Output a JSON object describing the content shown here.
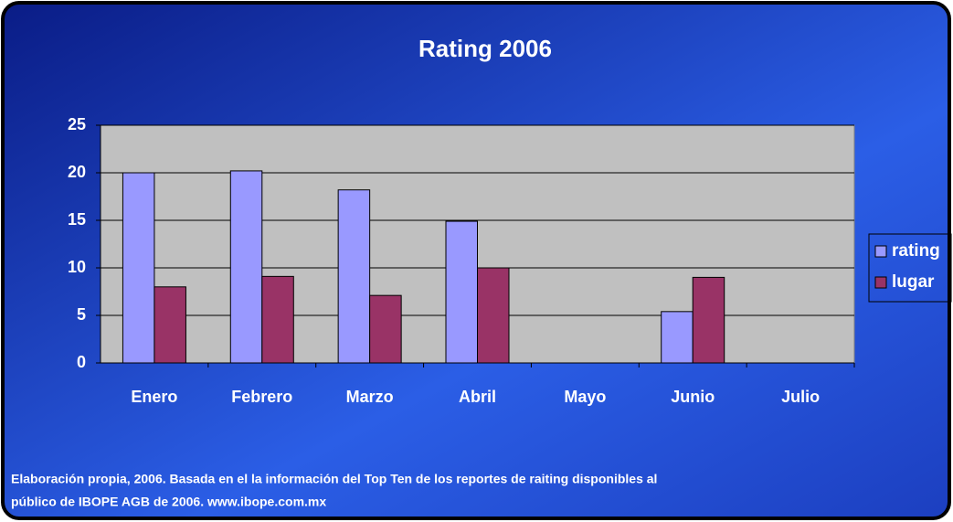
{
  "chart_data": {
    "type": "bar",
    "title": "Rating 2006",
    "categories": [
      "Enero",
      "Febrero",
      "Marzo",
      "Abril",
      "Mayo",
      "Junio",
      "Julio"
    ],
    "series": [
      {
        "name": "rating",
        "color": "#9999ff",
        "values": [
          20,
          20.2,
          18.2,
          14.9,
          null,
          5.4,
          null
        ]
      },
      {
        "name": "lugar",
        "color": "#993366",
        "values": [
          8,
          9.1,
          7.1,
          10,
          null,
          9,
          null
        ]
      }
    ],
    "ylim": [
      0,
      25
    ],
    "yticks": [
      0,
      5,
      10,
      15,
      20,
      25
    ],
    "grid": true,
    "legend": "right",
    "note": [
      "Elaboración propia, 2006. Basada en el la información del Top Ten  de los reportes de raiting disponibles al",
      "público de IBOPE AGB de 2006. www.ibope.com.mx"
    ]
  }
}
